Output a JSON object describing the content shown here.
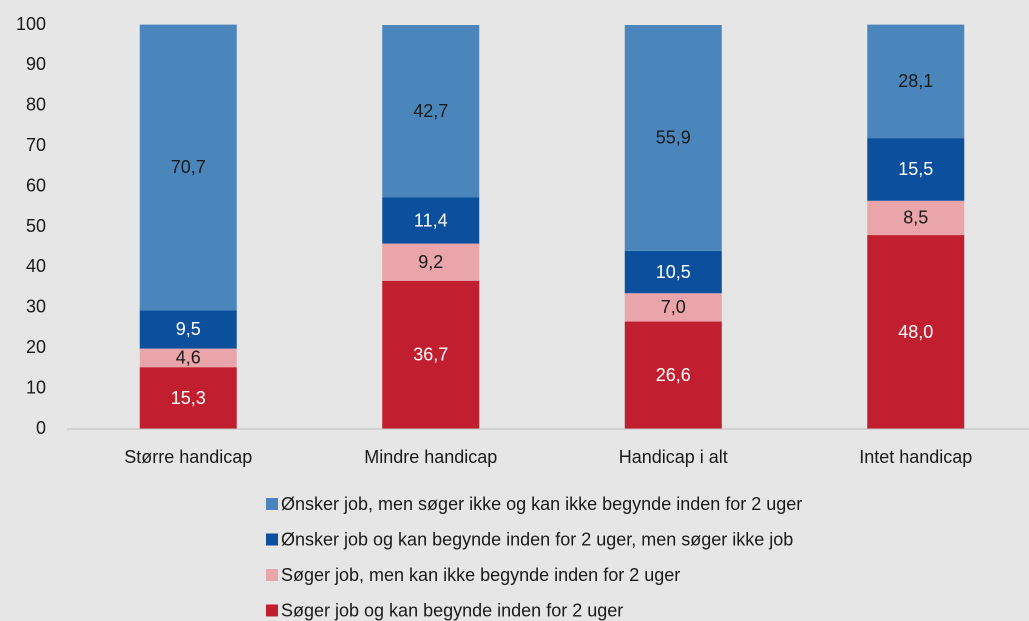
{
  "chart_data": {
    "type": "bar",
    "stacked": true,
    "categories": [
      "Større handicap",
      "Mindre handicap",
      "Handicap i alt",
      "Intet handicap"
    ],
    "series": [
      {
        "name": "Ønsker job, men søger ikke og kan ikke begynde inden for 2 uger",
        "color": "#4a86bb",
        "values": [
          70.7,
          42.7,
          55.9,
          28.1
        ],
        "value_labels": [
          "70,7",
          "42,7",
          "55,9",
          "28,1"
        ]
      },
      {
        "name": "Ønsker job og kan begynde inden for 2 uger, men søger ikke job",
        "color": "#0b4f9d",
        "values": [
          9.5,
          11.4,
          10.5,
          15.5
        ],
        "value_labels": [
          "9,5",
          "11,4",
          "10,5",
          "15,5"
        ]
      },
      {
        "name": "Søger job, men kan ikke begynde inden for 2 uger",
        "color": "#e9a5aa",
        "values": [
          4.6,
          9.2,
          7.0,
          8.5
        ],
        "value_labels": [
          "4,6",
          "9,2",
          "7,0",
          "8,5"
        ]
      },
      {
        "name": "Søger job og kan begynde inden for 2 uger",
        "color": "#c11f30",
        "values": [
          15.3,
          36.7,
          26.6,
          48.0
        ],
        "value_labels": [
          "15,3",
          "36,7",
          "26,6",
          "48,0"
        ]
      }
    ],
    "ylim": [
      0,
      100
    ],
    "yticks": [
      0,
      10,
      20,
      30,
      40,
      50,
      60,
      70,
      80,
      90,
      100
    ],
    "grid": false
  }
}
